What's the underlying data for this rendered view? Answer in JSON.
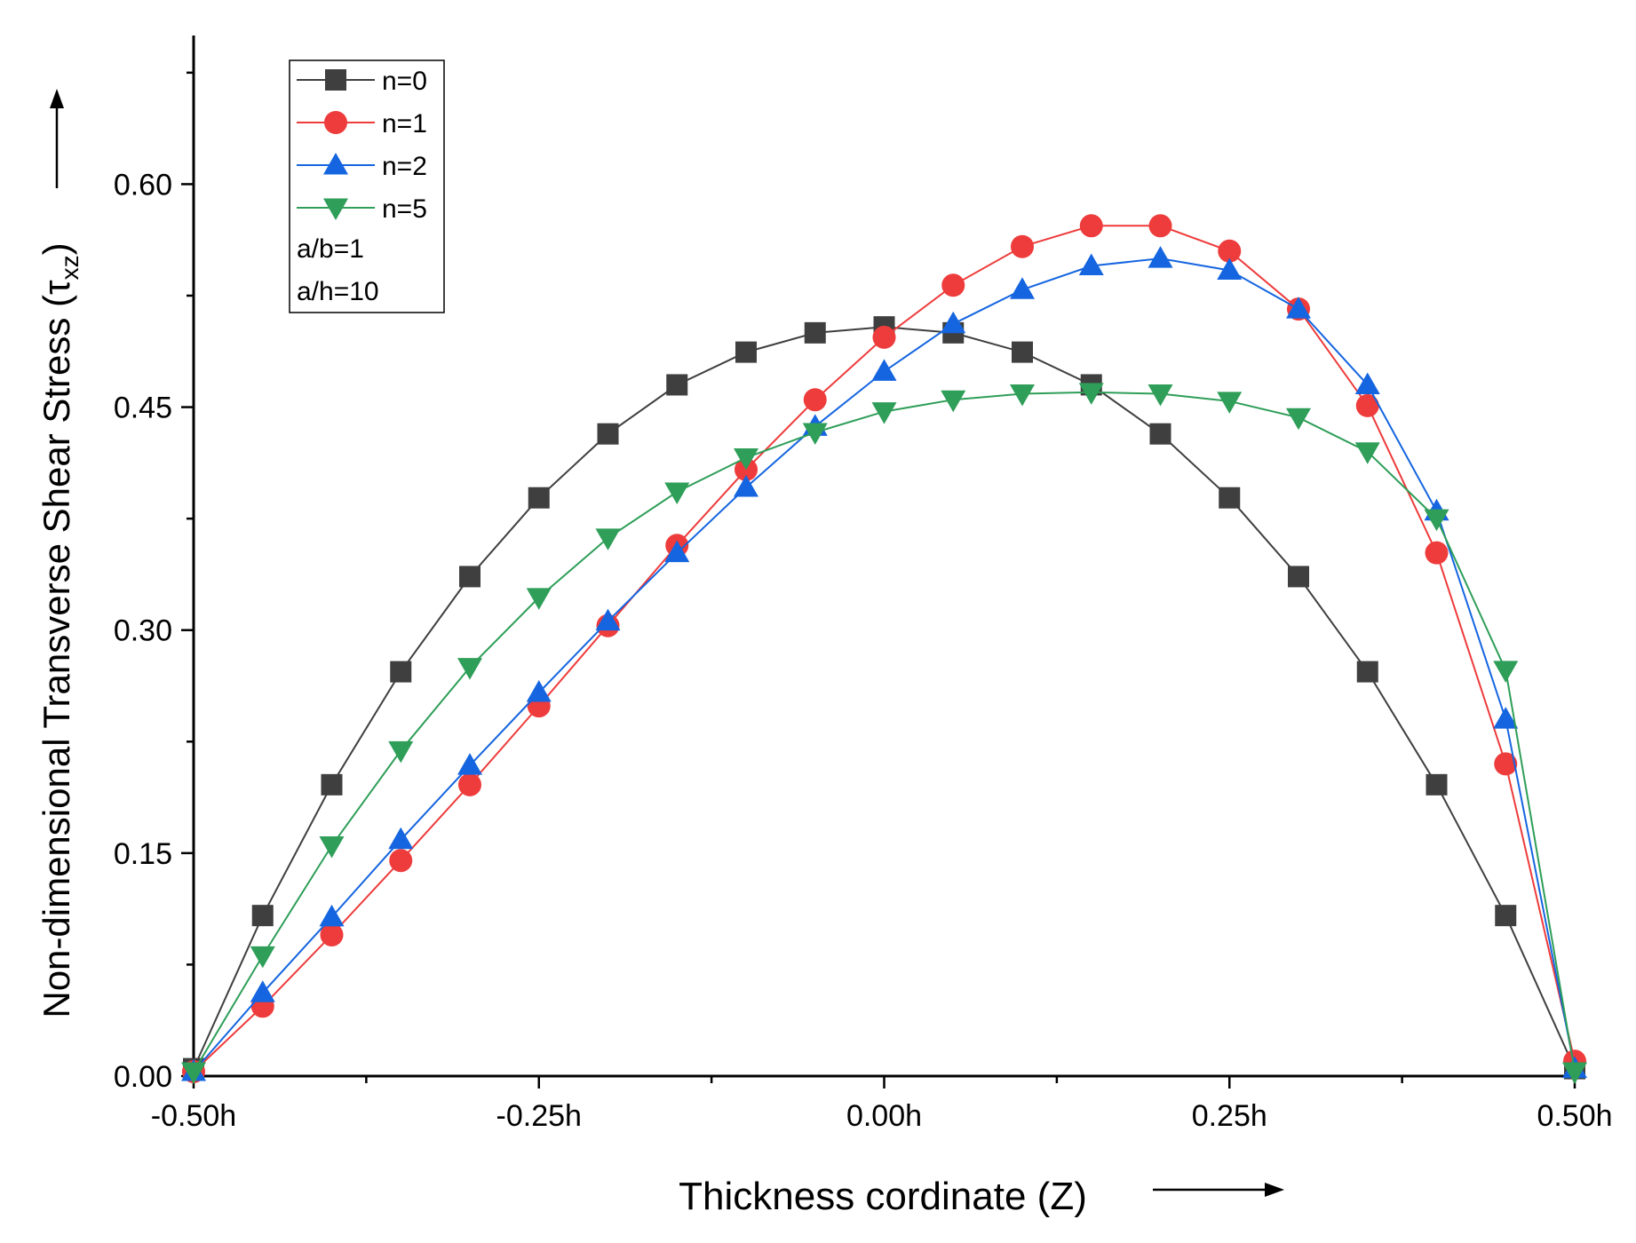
{
  "chart_data": {
    "type": "line",
    "title": "",
    "xlabel": "Thickness cordinate (Z)",
    "ylabel": "Non-dimensional Transverse Shear Stress",
    "ylabel_symbol": "τ",
    "ylabel_subscript": "xz",
    "xlim": [
      -0.5,
      0.5
    ],
    "ylim": [
      0,
      0.7
    ],
    "xticks": [
      {
        "value": -0.5,
        "label": "-0.50h"
      },
      {
        "value": -0.25,
        "label": "-0.25h"
      },
      {
        "value": 0.0,
        "label": "0.00h"
      },
      {
        "value": 0.25,
        "label": "0.25h"
      },
      {
        "value": 0.5,
        "label": "0.50h"
      }
    ],
    "yticks": [
      {
        "value": 0.0,
        "label": "0.00"
      },
      {
        "value": 0.15,
        "label": "0.15"
      },
      {
        "value": 0.3,
        "label": "0.30"
      },
      {
        "value": 0.45,
        "label": "0.45"
      },
      {
        "value": 0.6,
        "label": "0.60"
      }
    ],
    "x": [
      -0.5,
      -0.45,
      -0.4,
      -0.35,
      -0.3,
      -0.25,
      -0.2,
      -0.15,
      -0.1,
      -0.05,
      0.0,
      0.05,
      0.1,
      0.15,
      0.2,
      0.25,
      0.3,
      0.35,
      0.4,
      0.45,
      0.5
    ],
    "series": [
      {
        "name": "n=0",
        "color": "#3f3f3f",
        "marker": "square",
        "values": [
          0.005,
          0.108,
          0.196,
          0.272,
          0.336,
          0.389,
          0.432,
          0.465,
          0.487,
          0.5,
          0.504,
          0.5,
          0.487,
          0.465,
          0.432,
          0.389,
          0.336,
          0.272,
          0.196,
          0.108,
          0.005
        ]
      },
      {
        "name": "n=1",
        "color": "#ee3b3b",
        "marker": "circle",
        "values": [
          0.003,
          0.047,
          0.095,
          0.145,
          0.196,
          0.249,
          0.303,
          0.357,
          0.408,
          0.455,
          0.497,
          0.532,
          0.558,
          0.572,
          0.572,
          0.555,
          0.516,
          0.451,
          0.352,
          0.21,
          0.01
        ]
      },
      {
        "name": "n=2",
        "color": "#1565e0",
        "marker": "triangle-up",
        "values": [
          0.003,
          0.056,
          0.107,
          0.159,
          0.209,
          0.258,
          0.306,
          0.352,
          0.396,
          0.437,
          0.474,
          0.506,
          0.529,
          0.545,
          0.55,
          0.542,
          0.516,
          0.465,
          0.38,
          0.24,
          0.005
        ]
      },
      {
        "name": "n=5",
        "color": "#2e9e58",
        "marker": "triangle-down",
        "values": [
          0.003,
          0.081,
          0.155,
          0.219,
          0.275,
          0.322,
          0.362,
          0.393,
          0.416,
          0.433,
          0.447,
          0.455,
          0.459,
          0.46,
          0.459,
          0.454,
          0.443,
          0.42,
          0.375,
          0.273,
          0.003
        ]
      }
    ],
    "annotations": [
      "a/b=1",
      "a/h=10"
    ],
    "legend_position": "top-left"
  }
}
